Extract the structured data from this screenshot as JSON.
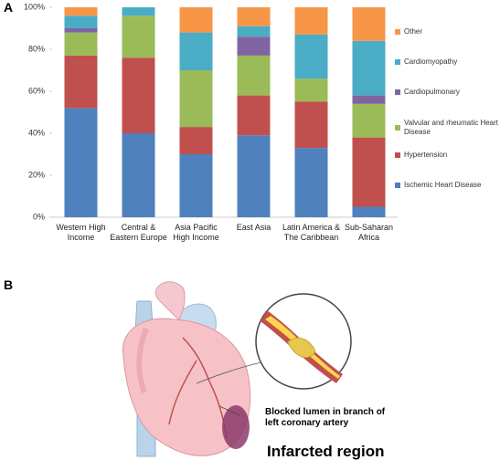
{
  "panel_a": {
    "label": "A"
  },
  "chart_data": {
    "type": "stacked_bar",
    "categories": [
      "Western High Income",
      "Central & Eastern Europe",
      "Asia Pacific High Income",
      "East Asia",
      "Latin America & The Caribbean",
      "Sub-Saharan Africa"
    ],
    "series": [
      {
        "name": "Ischemic Heart Disease",
        "color": "#4f81bd",
        "values": [
          52,
          40,
          30,
          39,
          33,
          5
        ]
      },
      {
        "name": "Hypertension",
        "color": "#c0504d",
        "values": [
          25,
          36,
          13,
          19,
          22,
          33
        ]
      },
      {
        "name": "Valvular and rheumatic Heart Disease",
        "color": "#9bbb59",
        "values": [
          11,
          20,
          27,
          19,
          11,
          16
        ]
      },
      {
        "name": "Cardiopulmonary",
        "color": "#8064a2",
        "values": [
          2,
          0,
          0,
          9,
          0,
          4
        ]
      },
      {
        "name": "Cardiomyopathy",
        "color": "#4bacc6",
        "values": [
          6,
          4,
          18,
          5,
          21,
          26
        ]
      },
      {
        "name": "Other",
        "color": "#f79646",
        "values": [
          4,
          0,
          12,
          9,
          13,
          16
        ]
      }
    ],
    "ylim": [
      0,
      100
    ],
    "yticks": [
      {
        "value": 0,
        "label": "0%"
      },
      {
        "value": 20,
        "label": "20%"
      },
      {
        "value": 40,
        "label": "40%"
      },
      {
        "value": 60,
        "label": "60%"
      },
      {
        "value": 80,
        "label": "80%"
      },
      {
        "value": 100,
        "label": "100%"
      }
    ]
  },
  "panel_b": {
    "label": "B",
    "annotations": [
      "Blocked lumen in branch of left coronary artery",
      "Infarcted region"
    ]
  }
}
